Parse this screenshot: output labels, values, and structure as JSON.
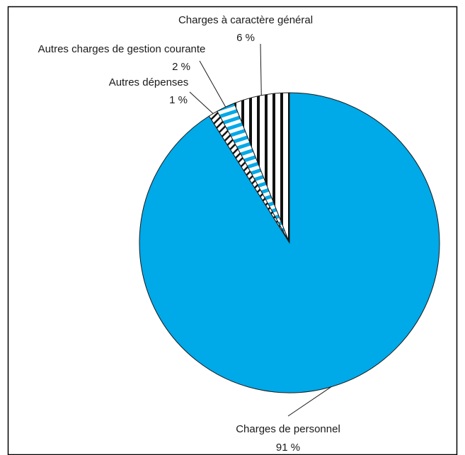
{
  "chart_data": {
    "type": "pie",
    "title": "",
    "slices": [
      {
        "label": "Charges de personnel",
        "value": 91,
        "value_label": "91 %",
        "fill": "#00a9e8",
        "pattern": "solid"
      },
      {
        "label": "Autres dépenses",
        "value": 1,
        "value_label": "1 %",
        "fill": "#ffffff",
        "pattern": "diagonal-black"
      },
      {
        "label": "Autres charges de gestion courante",
        "value": 2,
        "value_label": "2 %",
        "fill": "#00a9e8",
        "pattern": "stripes-blue"
      },
      {
        "label": "Charges à caractère général",
        "value": 6,
        "value_label": "6 %",
        "fill": "#111111",
        "pattern": "vertical-black"
      }
    ],
    "start_angle_deg": 0,
    "direction": "clockwise",
    "legend": "none",
    "labels": "callouts"
  },
  "colors": {
    "primary": "#00a9e8",
    "stroke": "#1a1a1a",
    "frame": "#000000"
  }
}
